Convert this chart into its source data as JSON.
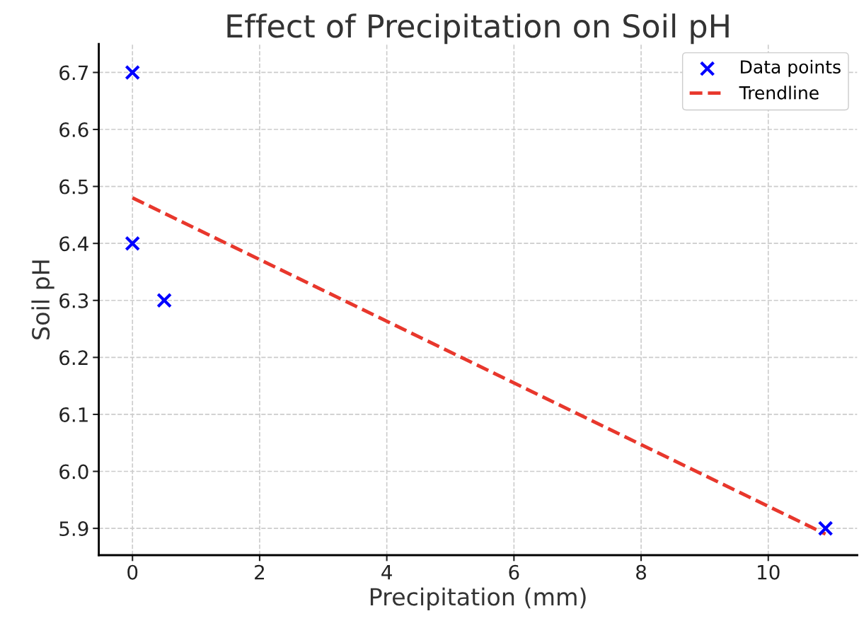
{
  "chart_data": {
    "type": "scatter",
    "title": "Effect of Precipitation on Soil pH",
    "xlabel": "Precipitation (mm)",
    "ylabel": "Soil pH",
    "series": [
      {
        "name": "Data points",
        "color": "#0000ff",
        "marker": "cross",
        "x": [
          0,
          0,
          0.5,
          10.9
        ],
        "values": [
          6.7,
          6.4,
          6.3,
          5.9
        ]
      },
      {
        "name": "Trendline",
        "type": "line",
        "color": "#e8372c",
        "line_style": "dashed",
        "marker": "none",
        "x": [
          0,
          10.9
        ],
        "values": [
          6.48,
          5.89
        ]
      }
    ],
    "xlim": [
      -0.53,
      11.4
    ],
    "xticks": [
      0,
      2,
      4,
      6,
      8,
      10
    ],
    "ylim": [
      5.853,
      6.75
    ],
    "yticks": [
      {
        "value": 5.9,
        "label": "5.9"
      },
      {
        "value": 6.0,
        "label": "6.0"
      },
      {
        "value": 6.1,
        "label": "6.1"
      },
      {
        "value": 6.2,
        "label": "6.2"
      },
      {
        "value": 6.3,
        "label": "6.3"
      },
      {
        "value": 6.4,
        "label": "6.4"
      },
      {
        "value": 6.5,
        "label": "6.5"
      },
      {
        "value": 6.6,
        "label": "6.6"
      },
      {
        "value": 6.7,
        "label": "6.7"
      }
    ],
    "grid": true,
    "legend": "top right"
  }
}
